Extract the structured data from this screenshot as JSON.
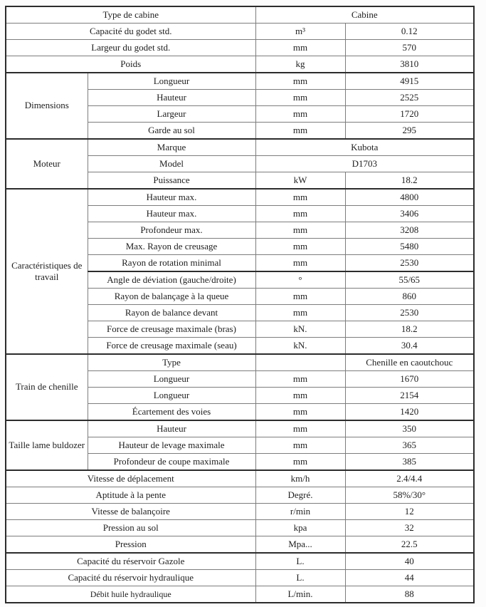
{
  "document": {
    "type": "specification-table",
    "language": "fr",
    "colors": {
      "background": "#fcfcfc",
      "text": "#1e1e1e",
      "border_thin": "#7d7d7d",
      "border_thick": "#2c2c2c"
    }
  },
  "rows": [
    {
      "label": "Type de cabine",
      "value": "Cabine"
    },
    {
      "label": "Capacité du godet std.",
      "unit": "m³",
      "value": "0.12"
    },
    {
      "label": "Largeur du godet std.",
      "unit": "mm",
      "value": "570"
    },
    {
      "label": "Poids",
      "unit": "kg",
      "value": "3810"
    },
    {
      "group": "Dimensions",
      "label": "Longueur",
      "unit": "mm",
      "value": "4915"
    },
    {
      "label": "Hauteur",
      "unit": "mm",
      "value": "2525"
    },
    {
      "label": "Largeur",
      "unit": "mm",
      "value": "1720"
    },
    {
      "label": "Garde au sol",
      "unit": "mm",
      "value": "295"
    },
    {
      "group": "Moteur",
      "label": "Marque",
      "value": "Kubota"
    },
    {
      "label": "Model",
      "value": "D1703"
    },
    {
      "label": "Puissance",
      "unit": "kW",
      "value": "18.2"
    },
    {
      "group": "Caractéristiques de travail",
      "label": "Hauteur max.",
      "unit": "mm",
      "value": "4800"
    },
    {
      "label": "Hauteur max.",
      "unit": "mm",
      "value": "3406"
    },
    {
      "label": "Profondeur max.",
      "unit": "mm",
      "value": "3208"
    },
    {
      "label": "Max. Rayon de creusage",
      "unit": "mm",
      "value": "5480"
    },
    {
      "label": "Rayon de rotation minimal",
      "unit": "mm",
      "value": "2530"
    },
    {
      "label": "Angle de déviation (gauche/droite)",
      "unit": "°",
      "value": "55/65"
    },
    {
      "label": "Rayon de balançage à la queue",
      "unit": "mm",
      "value": "860"
    },
    {
      "label": "Rayon de balance devant",
      "unit": "mm",
      "value": "2530"
    },
    {
      "label": "Force de creusage maximale (bras)",
      "unit": "kN.",
      "value": "18.2"
    },
    {
      "label": "Force de creusage maximale (seau)",
      "unit": "kN.",
      "value": "30.4"
    },
    {
      "group": "Train de chenille",
      "label": "Type",
      "unit": "",
      "value": "Chenille en caoutchouc"
    },
    {
      "label": "Longueur",
      "unit": "mm",
      "value": "1670"
    },
    {
      "label": "Longueur",
      "unit": "mm",
      "value": "2154"
    },
    {
      "label": "Écartement des voies",
      "unit": "mm",
      "value": "1420"
    },
    {
      "group": "Taille lame buldozer",
      "label": "Hauteur",
      "unit": "mm",
      "value": "350"
    },
    {
      "label": "Hauteur de levage maximale",
      "unit": "mm",
      "value": "365"
    },
    {
      "label": "Profondeur de coupe maximale",
      "unit": "mm",
      "value": "385"
    },
    {
      "label": "Vitesse de déplacement",
      "unit": "km/h",
      "value": "2.4/4.4"
    },
    {
      "label": "Aptitude à la pente",
      "unit": "Degré.",
      "value": "58%/30°"
    },
    {
      "label": "Vitesse de balançoire",
      "unit": "r/min",
      "value": "12"
    },
    {
      "label": "Pression au sol",
      "unit": "kpa",
      "value": "32"
    },
    {
      "label": "Pression",
      "unit": "Mpa...",
      "value": "22.5"
    },
    {
      "label": "Capacité du réservoir Gazole",
      "unit": "L.",
      "value": "40"
    },
    {
      "label": "Capacité du réservoir hydraulique",
      "unit": "L.",
      "value": "44"
    },
    {
      "label": "Débit huile hydraulique",
      "unit": "L/min.",
      "value": "88"
    }
  ]
}
